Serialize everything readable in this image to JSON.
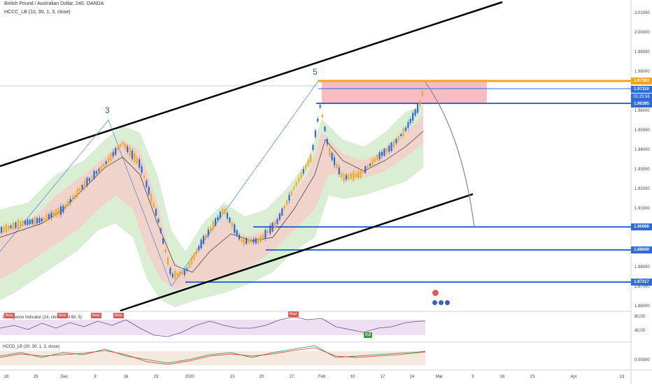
{
  "header": {
    "symbol_line": "British Pound / Australian Dollar, 240, OANDA",
    "indicator_line": "HCCC_LB (10, 30, 1, 3, close)"
  },
  "annotations": {
    "wave3": "3",
    "wave5": "5"
  },
  "price_axis": {
    "ticks": [
      "2.01000",
      "2.00000",
      "1.99000",
      "1.98000",
      "1.96000",
      "1.95000",
      "1.94000",
      "1.93000",
      "1.92000",
      "1.91000",
      "1.88000",
      "1.87000",
      "1.86000"
    ]
  },
  "price_tags": {
    "orange": "1.97563",
    "current": "1.97310",
    "countdown": "01:25:56",
    "blue_top": "1.96395",
    "level1": "1.90066",
    "level2": "1.88849",
    "level3": "1.87217"
  },
  "colors": {
    "orange": "#f7a21b",
    "blue": "#2e6bd6",
    "current": "#2e6bd6",
    "up_candle": "#2a6ad7",
    "down_candle": "#f5a623",
    "band_green": "#c8e6c0",
    "band_red": "#f4c7c3",
    "zone_red": "#f6a5ad",
    "bear": "#e05a5a",
    "bull": "#3a9a4a"
  },
  "divergence_panel": {
    "title": "Divergence Indicator (14, close, Bull 60, 5)",
    "ticks": [
      "80.00",
      "40.00"
    ],
    "bear_label": "Bear",
    "bull_label": "Bull"
  },
  "hccd_panel": {
    "title": "HCCD_LB (10, 30, 1, 3, close)",
    "ticks": [
      "0.00000"
    ]
  },
  "date_axis": [
    "18",
    "25",
    "Dec",
    "9",
    "16",
    "23",
    "2020",
    "13",
    "20",
    "27",
    "Feb",
    "10",
    "17",
    "24",
    "Mar",
    "9",
    "16",
    "23",
    "Apr",
    "13"
  ]
}
